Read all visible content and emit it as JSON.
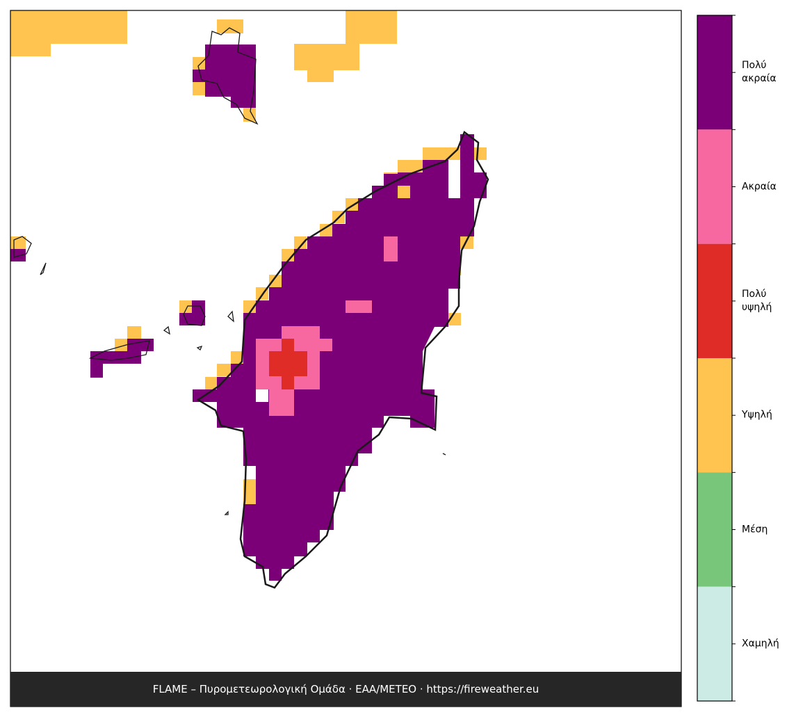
{
  "legend": {
    "levels": [
      {
        "label": "Πολύ ακραία",
        "color": "#7b0077"
      },
      {
        "label": "Ακραία",
        "color": "#f768a1"
      },
      {
        "label": "Πολύ υψηλή",
        "color": "#e02c26"
      },
      {
        "label": "Υψηλή",
        "color": "#fec44f"
      },
      {
        "label": "Μέση",
        "color": "#78c679"
      },
      {
        "label": "Χαμηλή",
        "color": "#ccebe4"
      }
    ]
  },
  "footer": "FLAME – Πυρομετεωρολογική Ομάδα · ΕΑΑ/METEO · https://fireweather.eu"
}
